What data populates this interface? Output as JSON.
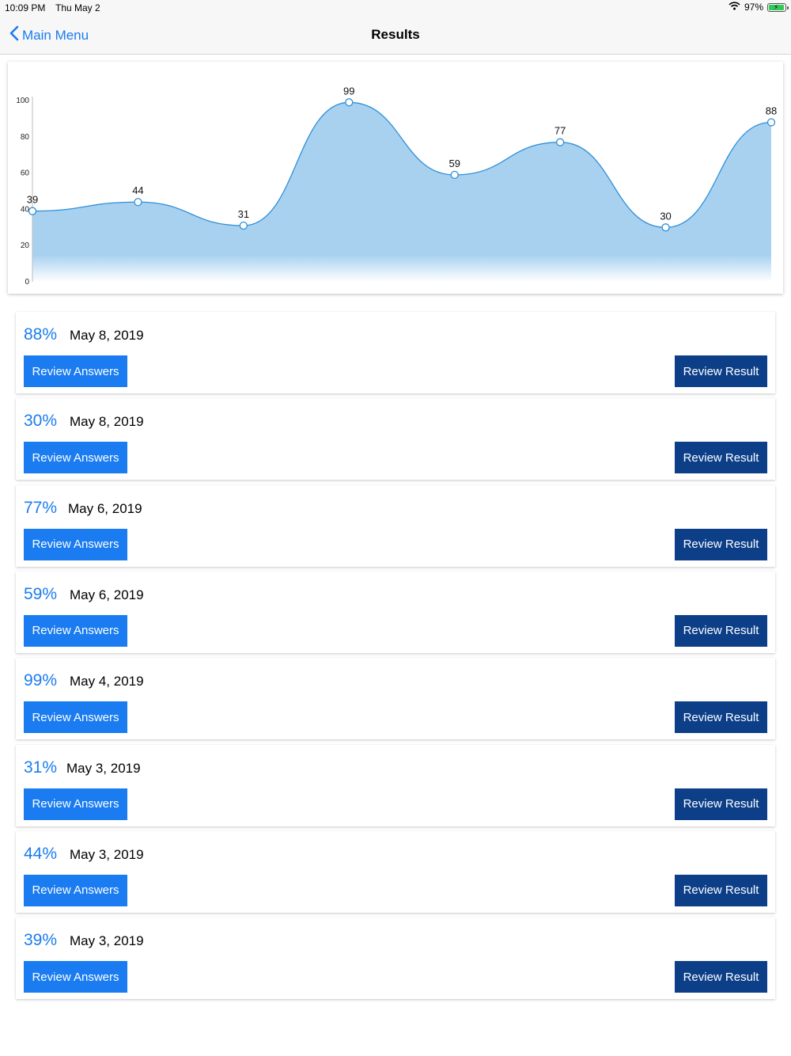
{
  "status_bar": {
    "time": "10:09 PM",
    "date": "Thu May 2",
    "battery": "97%",
    "wifi_icon": "wifi-icon",
    "battery_icon": "battery-charging-icon"
  },
  "nav": {
    "back_label": "Main Menu",
    "back_icon": "chevron-left-icon",
    "title": "Results"
  },
  "colors": {
    "accent": "#1a7cf0",
    "dark_button": "#0c3f88",
    "chart_fill": "#a8d1f0",
    "chart_line": "#2f8fd8"
  },
  "chart_data": {
    "type": "area",
    "values": [
      39,
      44,
      31,
      99,
      59,
      77,
      30,
      88
    ],
    "data_labels": [
      "39",
      "44",
      "31",
      "99",
      "59",
      "77",
      "30",
      "88"
    ],
    "yticks": [
      "0",
      "20",
      "40",
      "60",
      "80",
      "100"
    ],
    "ylim": [
      0,
      100
    ],
    "smooth": true,
    "markers": "hollow-circle",
    "grid": false,
    "legend": false
  },
  "results": [
    {
      "percent": "88%",
      "date": "May 8, 2019",
      "answers_label": "Review Answers",
      "result_label": "Review Result"
    },
    {
      "percent": "30%",
      "date": "May 8, 2019",
      "answers_label": "Review Answers",
      "result_label": "Review Result"
    },
    {
      "percent": "77%",
      "date": "May 6, 2019",
      "answers_label": "Review Answers",
      "result_label": "Review Result"
    },
    {
      "percent": "59%",
      "date": "May 6, 2019",
      "answers_label": "Review Answers",
      "result_label": "Review Result"
    },
    {
      "percent": "99%",
      "date": "May 4, 2019",
      "answers_label": "Review Answers",
      "result_label": "Review Result"
    },
    {
      "percent": "31%",
      "date": "May 3, 2019",
      "answers_label": "Review Answers",
      "result_label": "Review Result"
    },
    {
      "percent": "44%",
      "date": "May 3, 2019",
      "answers_label": "Review Answers",
      "result_label": "Review Result"
    },
    {
      "percent": "39%",
      "date": "May 3, 2019",
      "answers_label": "Review Answers",
      "result_label": "Review Result"
    }
  ]
}
